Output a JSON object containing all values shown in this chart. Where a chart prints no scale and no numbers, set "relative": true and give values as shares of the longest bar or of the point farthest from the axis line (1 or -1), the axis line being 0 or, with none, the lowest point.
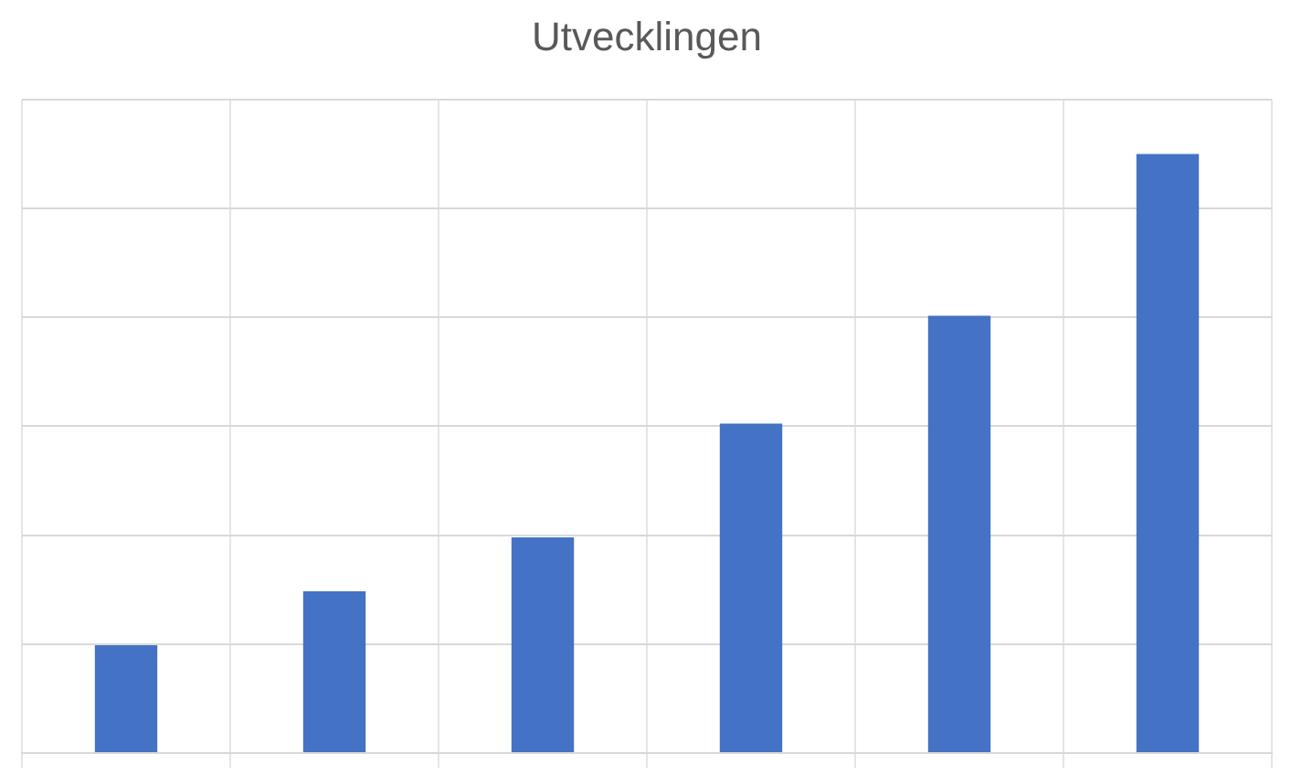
{
  "chart_data": {
    "type": "bar",
    "title": "Utvecklingen",
    "relative": true,
    "grid": true,
    "categories": [
      null,
      null,
      null,
      null,
      null,
      null
    ],
    "values": [
      0.18,
      0.27,
      0.36,
      0.55,
      0.73,
      1
    ],
    "color": "#4472c4"
  }
}
